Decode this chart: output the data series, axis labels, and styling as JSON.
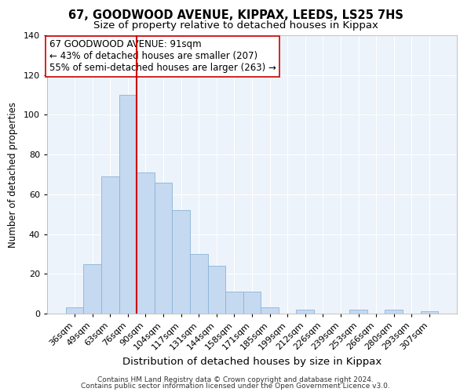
{
  "title": "67, GOODWOOD AVENUE, KIPPAX, LEEDS, LS25 7HS",
  "subtitle": "Size of property relative to detached houses in Kippax",
  "xlabel": "Distribution of detached houses by size in Kippax",
  "ylabel": "Number of detached properties",
  "bar_labels": [
    "36sqm",
    "49sqm",
    "63sqm",
    "76sqm",
    "90sqm",
    "104sqm",
    "117sqm",
    "131sqm",
    "144sqm",
    "158sqm",
    "171sqm",
    "185sqm",
    "199sqm",
    "212sqm",
    "226sqm",
    "239sqm",
    "253sqm",
    "266sqm",
    "280sqm",
    "293sqm",
    "307sqm"
  ],
  "bar_values": [
    3,
    25,
    69,
    110,
    71,
    66,
    52,
    30,
    24,
    11,
    11,
    3,
    0,
    2,
    0,
    0,
    2,
    0,
    2,
    0,
    1
  ],
  "bar_color": "#c5d9f0",
  "bar_edge_color": "#8ab4d8",
  "vline_x_index": 3,
  "vline_color": "#cc0000",
  "ylim": [
    0,
    140
  ],
  "yticks": [
    0,
    20,
    40,
    60,
    80,
    100,
    120,
    140
  ],
  "annotation_line1": "67 GOODWOOD AVENUE: 91sqm",
  "annotation_line2": "← 43% of detached houses are smaller (207)",
  "annotation_line3": "55% of semi-detached houses are larger (263) →",
  "annotation_box_edge_color": "#cc0000",
  "footer_line1": "Contains HM Land Registry data © Crown copyright and database right 2024.",
  "footer_line2": "Contains public sector information licensed under the Open Government Licence v3.0.",
  "title_fontsize": 10.5,
  "subtitle_fontsize": 9.5,
  "xlabel_fontsize": 9.5,
  "ylabel_fontsize": 8.5,
  "tick_fontsize": 8,
  "annotation_fontsize": 8.5,
  "footer_fontsize": 6.5,
  "background_color": "#ffffff",
  "grid_color": "#d0dce8"
}
